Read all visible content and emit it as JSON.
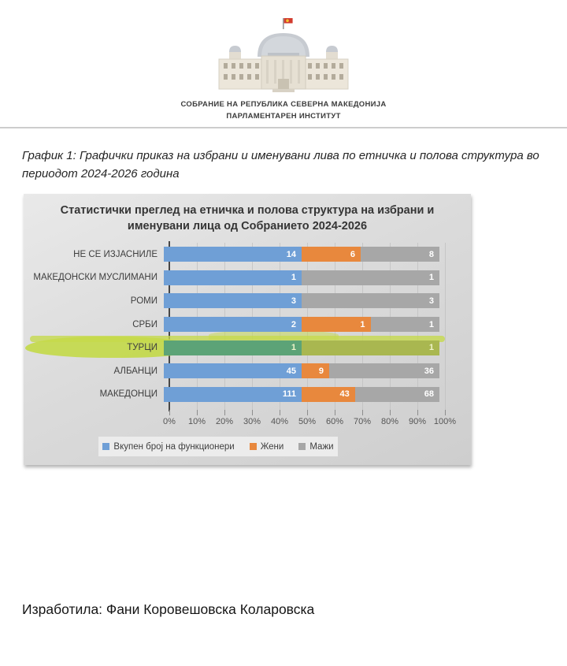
{
  "header": {
    "org_line1": "СОБРАНИЕ НА РЕПУБЛИКА СЕВЕРНА МАКЕДОНИЈА",
    "org_line2": "ПАРЛАМЕНТАРЕН ИНСТИТУТ"
  },
  "caption": "График 1: Графички приказ на избрани и именувани лива по етничка и полова структура во периодот 2024-2026 година",
  "chart_data": {
    "type": "bar",
    "orientation": "horizontal",
    "stacked_percent": true,
    "title": "Статистички преглед на етничка и полова структура на избрани и именувани лица од Собранието 2024-2026",
    "categories": [
      "НЕ СЕ ИЗЈАСНИЛЕ",
      "МАКЕДОНСКИ МУСЛИМАНИ",
      "РОМИ",
      "СРБИ",
      "ТУРЦИ",
      "АЛБАНЦИ",
      "МАКЕДОНЦИ"
    ],
    "series": [
      {
        "name": "Вкупен број на функционери",
        "color": "#6f9fd6",
        "values": [
          14,
          1,
          3,
          2,
          1,
          45,
          111
        ]
      },
      {
        "name": "Жени",
        "color": "#e8883d",
        "values": [
          6,
          0,
          0,
          1,
          0,
          9,
          43
        ]
      },
      {
        "name": "Мажи",
        "color": "#a7a7a7",
        "values": [
          8,
          1,
          3,
          1,
          1,
          36,
          68
        ]
      }
    ],
    "x_ticks": [
      "0%",
      "10%",
      "20%",
      "30%",
      "40%",
      "50%",
      "60%",
      "70%",
      "80%",
      "90%",
      "100%"
    ],
    "xlim": [
      0,
      100
    ],
    "grid": true,
    "legend_position": "bottom",
    "highlighted_category": "ТУРЦИ",
    "highlight_color": "#c3d94b"
  },
  "footer": "Изработила: Фани Коровешовска Коларовска"
}
